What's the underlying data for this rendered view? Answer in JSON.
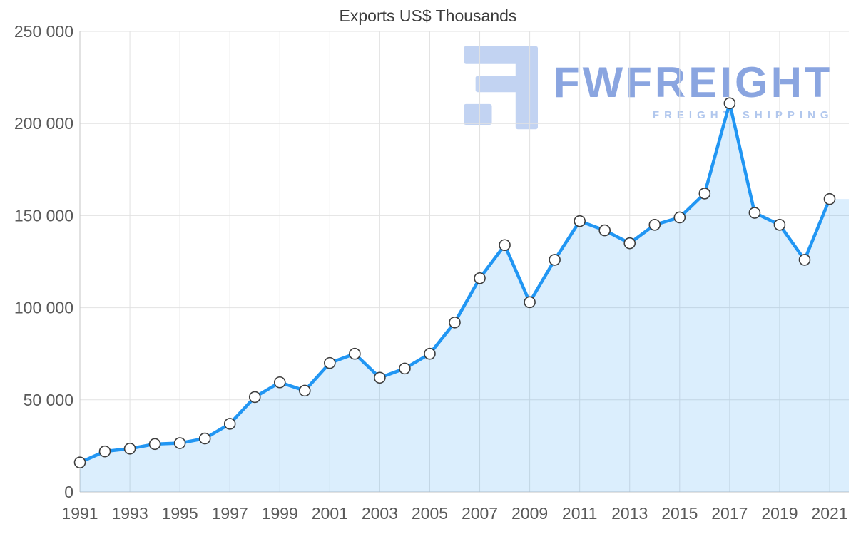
{
  "page": {
    "background": "#ffffff"
  },
  "chart": {
    "title": "Exports US$ Thousands"
  },
  "watermark": {
    "brand": "FWFREIGHT",
    "tagline": "FREIGHT SHIPPING",
    "brand_color": "#6e8fd9",
    "tagline_color": "#a9c1ec",
    "icon_color": "#aec5ee"
  },
  "chart_data": {
    "type": "area",
    "title": "Exports US$ Thousands",
    "x": [
      1991,
      1992,
      1993,
      1994,
      1995,
      1996,
      1997,
      1998,
      1999,
      2000,
      2001,
      2002,
      2003,
      2004,
      2005,
      2006,
      2007,
      2008,
      2009,
      2010,
      2011,
      2012,
      2013,
      2014,
      2015,
      2016,
      2017,
      2018,
      2019,
      2020,
      2021
    ],
    "series": [
      {
        "name": "Exports US$ Thousands",
        "values": [
          16000,
          22000,
          23500,
          26000,
          26500,
          29000,
          37000,
          51500,
          59500,
          55000,
          70000,
          75000,
          62000,
          67000,
          75000,
          92000,
          116000,
          134000,
          103000,
          126000,
          147000,
          142000,
          135000,
          145000,
          149000,
          162000,
          211000,
          151500,
          145000,
          126000,
          159000
        ]
      }
    ],
    "ylim": [
      0,
      250000
    ],
    "yticks": [
      0,
      50000,
      100000,
      150000,
      200000,
      250000
    ],
    "ytick_labels": [
      "0",
      "50 000",
      "100 000",
      "150 000",
      "200 000",
      "250 000"
    ],
    "xtick_labels": [
      "1991",
      "1993",
      "1995",
      "1997",
      "1999",
      "2001",
      "2003",
      "2005",
      "2007",
      "2009",
      "2011",
      "2013",
      "2015",
      "2017",
      "2019",
      "2021"
    ],
    "grid": true,
    "legend": "none",
    "grid_color": "#e2e2e2",
    "axis_color": "#c6c6c6",
    "line_color": "#2196f3",
    "area_color": "rgba(33,150,243,0.16)",
    "marker_fill": "#ffffff",
    "marker_stroke": "#3d3d3d",
    "tick_label_color": "#595959",
    "title_color": "#3c3c3c"
  }
}
